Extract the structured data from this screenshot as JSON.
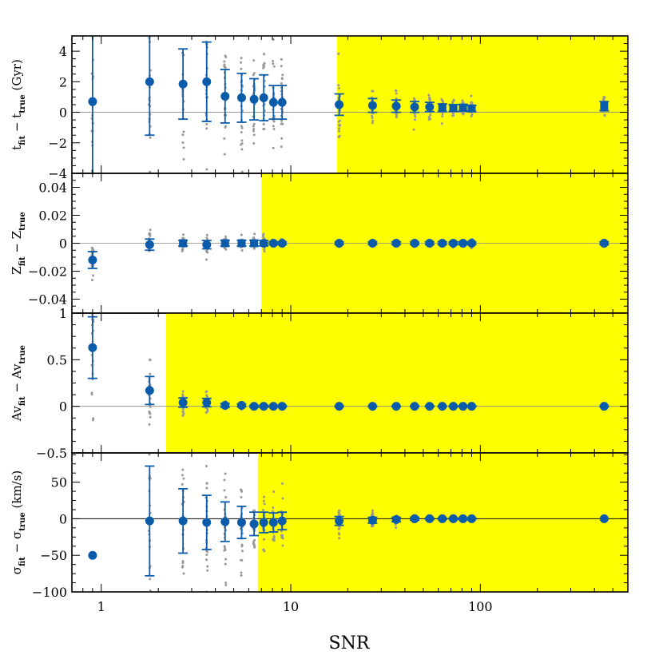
{
  "figure": {
    "xlabel": "SNR",
    "xscale": "log",
    "xlim": [
      0.7,
      600
    ],
    "x_ticks": [
      1,
      10,
      100
    ],
    "x_tick_labels": [
      "1",
      "10",
      "100"
    ],
    "colors": {
      "highlight": "#ffff00",
      "points": "#0b5bab",
      "scatter": "#999999",
      "reference_line": "#888888"
    }
  },
  "chart_data": [
    {
      "type": "scatter",
      "id": "age",
      "ylabel": {
        "main": "t",
        "sub1": "fit",
        "mid": " − t",
        "sub2": "true",
        "unit": "  (Gyr)"
      },
      "ylim": [
        -4,
        5
      ],
      "yticks": [
        4,
        2,
        0,
        -2,
        -4
      ],
      "ytick_labels": [
        "4",
        "2",
        "0",
        "−2",
        "−4"
      ],
      "yellow_region_from_snr": 17.5,
      "snr": [
        0.9,
        1.8,
        2.7,
        3.6,
        4.5,
        5.5,
        6.4,
        7.2,
        8.1,
        9.0,
        18,
        27,
        36,
        45,
        54,
        63,
        72,
        81,
        90,
        450
      ],
      "mean": [
        0.7,
        2.0,
        1.85,
        2.0,
        1.05,
        0.95,
        0.85,
        0.95,
        0.65,
        0.65,
        0.5,
        0.45,
        0.4,
        0.35,
        0.35,
        0.3,
        0.28,
        0.3,
        0.25,
        0.4
      ],
      "error": [
        5.0,
        3.5,
        2.3,
        2.6,
        1.75,
        1.6,
        1.35,
        1.5,
        1.1,
        1.1,
        0.7,
        0.45,
        0.4,
        0.35,
        0.3,
        0.25,
        0.22,
        0.22,
        0.2,
        0.3
      ],
      "markers": [
        "circle",
        "circle",
        "circle",
        "circle",
        "circle",
        "circle",
        "circle",
        "circle",
        "circle",
        "circle",
        "circle",
        "circle",
        "circle",
        "circle",
        "circle",
        "square",
        "square",
        "square",
        "square",
        "square"
      ]
    },
    {
      "type": "scatter",
      "id": "metallicity",
      "ylabel": {
        "main": "Z",
        "sub1": "fit",
        "mid": " − Z",
        "sub2": "true",
        "unit": ""
      },
      "ylim": [
        -0.05,
        0.05
      ],
      "yticks": [
        0.04,
        0.02,
        0,
        -0.02,
        -0.04
      ],
      "ytick_labels": [
        "0.04",
        "0.02",
        "0",
        "−0.02",
        "−0.04"
      ],
      "yellow_region_from_snr": 7.0,
      "snr": [
        0.9,
        1.8,
        2.7,
        3.6,
        4.5,
        5.5,
        6.4,
        7.2,
        8.1,
        9.0,
        18,
        27,
        36,
        45,
        54,
        63,
        72,
        81,
        90,
        450
      ],
      "mean": [
        -0.012,
        -0.001,
        0.0,
        -0.001,
        0.0,
        0.0,
        0.0,
        0.0,
        0.0,
        0.0,
        0.0,
        0.0,
        0.0,
        0.0,
        0.0,
        0.0,
        0.0,
        0.0,
        0.0,
        0.0
      ],
      "error": [
        0.006,
        0.004,
        0.002,
        0.003,
        0.002,
        0.002,
        0.002,
        0.002,
        0.001,
        0.001,
        0.001,
        0.001,
        0.001,
        0.001,
        0.001,
        0.001,
        0.001,
        0.001,
        0.001,
        0.001
      ],
      "markers": [
        "circle",
        "circle",
        "square",
        "circle",
        "square",
        "square",
        "square",
        "circle",
        "circle",
        "circle",
        "circle",
        "circle",
        "circle",
        "circle",
        "circle",
        "circle",
        "circle",
        "circle",
        "circle",
        "circle"
      ]
    },
    {
      "type": "scatter",
      "id": "extinction",
      "ylabel": {
        "main": "Av",
        "sub1": "fit",
        "mid": " − Av",
        "sub2": "true",
        "unit": ""
      },
      "ylim": [
        -0.5,
        1
      ],
      "yticks": [
        1,
        0.5,
        0,
        -0.5
      ],
      "ytick_labels": [
        "1",
        "0.5",
        "0",
        "−0.5"
      ],
      "yellow_region_from_snr": 2.2,
      "snr": [
        0.9,
        1.8,
        2.7,
        3.6,
        4.5,
        5.5,
        6.4,
        7.2,
        8.1,
        9.0,
        18,
        27,
        36,
        45,
        54,
        63,
        72,
        81,
        90,
        450
      ],
      "mean": [
        0.63,
        0.17,
        0.04,
        0.04,
        0.01,
        0.01,
        0.0,
        0.0,
        0.0,
        0.0,
        0.0,
        0.0,
        0.0,
        0.0,
        0.0,
        0.0,
        0.0,
        0.0,
        0.0,
        0.0
      ],
      "error": [
        0.33,
        0.15,
        0.05,
        0.045,
        0.02,
        0.015,
        0.01,
        0.01,
        0.008,
        0.008,
        0.005,
        0.005,
        0.005,
        0.005,
        0.005,
        0.005,
        0.005,
        0.005,
        0.005,
        0.005
      ],
      "markers": [
        "circle",
        "circle",
        "circle",
        "circle",
        "circle",
        "circle",
        "circle",
        "circle",
        "circle",
        "circle",
        "circle",
        "circle",
        "circle",
        "circle",
        "circle",
        "circle",
        "circle",
        "circle",
        "circle",
        "circle"
      ]
    },
    {
      "type": "scatter",
      "id": "dispersion",
      "ylabel": {
        "main": "σ",
        "sub1": "fit",
        "mid": " − σ",
        "sub2": "true",
        "unit": "  (km/s)"
      },
      "ylim": [
        -100,
        90
      ],
      "yticks": [
        50,
        0,
        -50,
        -100
      ],
      "ytick_labels": [
        "50",
        "0",
        "−50",
        "−100"
      ],
      "yellow_region_from_snr": 6.7,
      "snr": [
        0.9,
        1.8,
        2.7,
        3.6,
        4.5,
        5.5,
        6.4,
        7.2,
        8.1,
        9.0,
        18,
        27,
        36,
        45,
        54,
        63,
        72,
        81,
        90,
        450
      ],
      "mean": [
        -50,
        -3,
        -3,
        -5,
        -4,
        -5,
        -7,
        -5,
        -5,
        -3,
        -3,
        -2,
        -1,
        0,
        0,
        0,
        0,
        0,
        0,
        0
      ],
      "error": [
        0,
        75,
        44,
        37,
        27,
        22,
        16,
        14,
        13,
        12,
        6,
        4,
        3,
        2,
        1,
        1,
        1,
        1,
        1,
        0
      ],
      "markers": [
        "circle",
        "circle",
        "circle",
        "circle",
        "circle",
        "circle",
        "circle",
        "circle",
        "circle",
        "circle",
        "circle",
        "circle",
        "circle",
        "circle",
        "circle",
        "circle",
        "circle",
        "circle",
        "circle",
        "circle"
      ]
    }
  ]
}
